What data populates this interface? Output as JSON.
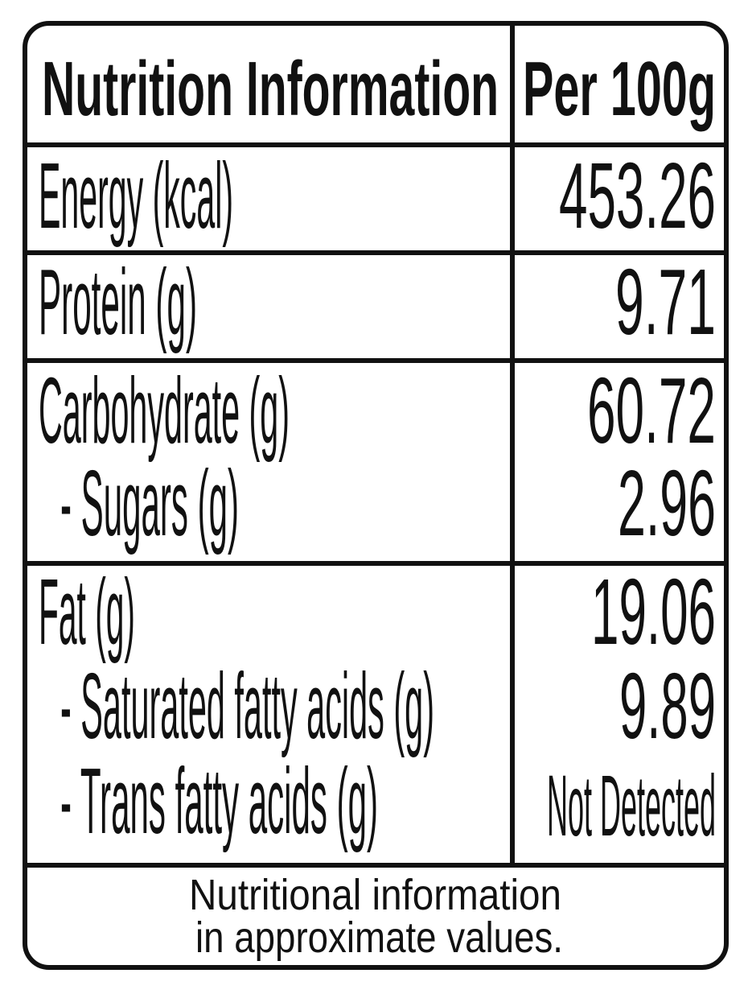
{
  "header": {
    "title": "Nutrition Information",
    "per": "Per 100g"
  },
  "sections": [
    [
      {
        "label": "Energy (kcal)",
        "value": "453.26"
      }
    ],
    [
      {
        "label": "Protein (g)",
        "value": "9.71"
      }
    ],
    [
      {
        "label": "Carbohydrate (g)",
        "value": "60.72"
      },
      {
        "label": "- Sugars (g)",
        "value": "2.96"
      }
    ],
    [
      {
        "label": "Fat (g)",
        "value": "19.06"
      },
      {
        "label": "- Saturated fatty acids (g)",
        "value": "9.89"
      },
      {
        "label": "- Trans fatty acids (g)",
        "value": "Not Detected"
      }
    ]
  ],
  "footnote": [
    "Nutritional information",
    "in approximate values."
  ]
}
